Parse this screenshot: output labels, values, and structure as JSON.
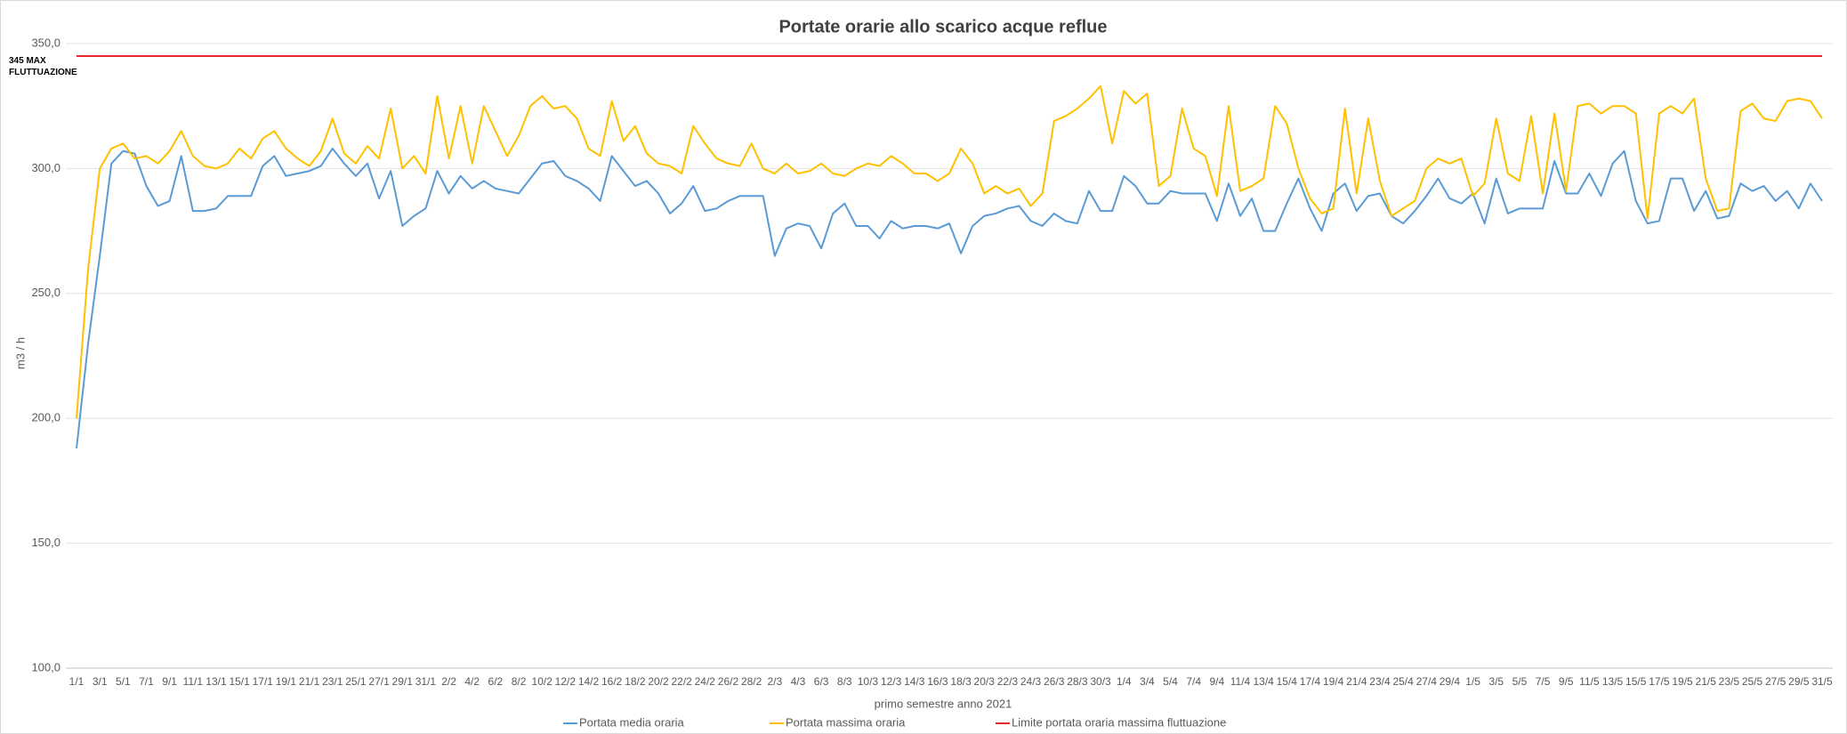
{
  "chart_data": {
    "type": "line",
    "title": "Portate orarie allo scarico acque reflue",
    "x_label": "primo semestre anno 2021",
    "y_label": "m3 / h",
    "annotation": "345 MAX FLUTTUAZIONE",
    "categories": [
      "1/1",
      null,
      "3/1",
      null,
      "5/1",
      null,
      "7/1",
      null,
      "9/1",
      null,
      "11/1",
      null,
      "13/1",
      null,
      "15/1",
      null,
      "17/1",
      null,
      "19/1",
      null,
      "21/1",
      null,
      "23/1",
      null,
      "25/1",
      null,
      "27/1",
      null,
      "29/1",
      null,
      "31/1",
      null,
      "2/2",
      null,
      "4/2",
      null,
      "6/2",
      null,
      "8/2",
      null,
      "10/2",
      null,
      "12/2",
      null,
      "14/2",
      null,
      "16/2",
      null,
      "18/2",
      null,
      "20/2",
      null,
      "22/2",
      null,
      "24/2",
      null,
      "26/2",
      null,
      "28/2",
      null,
      "2/3",
      null,
      "4/3",
      null,
      "6/3",
      null,
      "8/3",
      null,
      "10/3",
      null,
      "12/3",
      null,
      "14/3",
      null,
      "16/3",
      null,
      "18/3",
      null,
      "20/3",
      null,
      "22/3",
      null,
      "24/3",
      null,
      "26/3",
      null,
      "28/3",
      null,
      "30/3",
      null,
      "1/4",
      null,
      "3/4",
      null,
      "5/4",
      null,
      "7/4",
      null,
      "9/4",
      null,
      "11/4",
      null,
      "13/4",
      null,
      "15/4",
      null,
      "17/4",
      null,
      "19/4",
      null,
      "21/4",
      null,
      "23/4",
      null,
      "25/4",
      null,
      "27/4",
      null,
      "29/4",
      null,
      "1/5",
      null,
      "3/5",
      null,
      "5/5",
      null,
      "7/5",
      null,
      "9/5",
      null,
      "11/5",
      null,
      "13/5",
      null,
      "15/5",
      null,
      "17/5",
      null,
      "19/5",
      null,
      "21/5",
      null,
      "23/5",
      null,
      "25/5",
      null,
      "27/5",
      null,
      "29/5",
      null,
      "31/5"
    ],
    "series": [
      {
        "name": "Portata media oraria",
        "color": "#5b9bd5",
        "values": [
          188,
          230,
          265,
          302,
          307,
          306,
          293,
          285,
          287,
          305,
          283,
          283,
          284,
          289,
          289,
          289,
          301,
          305,
          297,
          298,
          299,
          301,
          308,
          302,
          297,
          302,
          288,
          299,
          277,
          281,
          284,
          299,
          290,
          297,
          292,
          295,
          292,
          291,
          290,
          296,
          302,
          303,
          297,
          295,
          292,
          287,
          305,
          299,
          293,
          295,
          290,
          282,
          286,
          293,
          283,
          284,
          287,
          289,
          289,
          289,
          265,
          276,
          278,
          277,
          268,
          282,
          286,
          277,
          277,
          272,
          279,
          276,
          277,
          277,
          276,
          278,
          266,
          277,
          281,
          282,
          284,
          285,
          279,
          277,
          282,
          279,
          278,
          291,
          283,
          283,
          297,
          293,
          286,
          286,
          291,
          290,
          290,
          290,
          279,
          294,
          281,
          288,
          275,
          275,
          286,
          296,
          284,
          275,
          290,
          294,
          283,
          289,
          290,
          281,
          278,
          283,
          289,
          296,
          288,
          286,
          290,
          278,
          296,
          282,
          284,
          284,
          284,
          303,
          290,
          290,
          298,
          289,
          302,
          307,
          287,
          278,
          279,
          296,
          296,
          283,
          291,
          280,
          281,
          294,
          291,
          293,
          287,
          291,
          284,
          294,
          287
        ]
      },
      {
        "name": "Portata massima oraria",
        "color": "#ffc000",
        "values": [
          200,
          260,
          300,
          308,
          310,
          304,
          305,
          302,
          307,
          315,
          305,
          301,
          300,
          302,
          308,
          304,
          312,
          315,
          308,
          304,
          301,
          307,
          320,
          306,
          302,
          309,
          304,
          324,
          300,
          305,
          298,
          329,
          304,
          325,
          302,
          325,
          315,
          305,
          313,
          325,
          329,
          324,
          325,
          320,
          308,
          305,
          327,
          311,
          317,
          306,
          302,
          301,
          298,
          317,
          310,
          304,
          302,
          301,
          310,
          300,
          298,
          302,
          298,
          299,
          302,
          298,
          297,
          300,
          302,
          301,
          305,
          302,
          298,
          298,
          295,
          298,
          308,
          302,
          290,
          293,
          290,
          292,
          285,
          290,
          319,
          321,
          324,
          328,
          333,
          310,
          331,
          326,
          330,
          293,
          297,
          324,
          308,
          305,
          289,
          325,
          291,
          293,
          296,
          325,
          318,
          300,
          288,
          282,
          284,
          324,
          290,
          320,
          295,
          281,
          284,
          287,
          300,
          304,
          302,
          304,
          289,
          294,
          320,
          298,
          295,
          321,
          290,
          322,
          291,
          325,
          326,
          322,
          325,
          325,
          322,
          280,
          322,
          325,
          322,
          328,
          296,
          283,
          284,
          323,
          326,
          320,
          319,
          327,
          328,
          327,
          320
        ]
      },
      {
        "name": "Limite portata oraria massima fluttuazione",
        "color": "#e8262b",
        "values": [
          345,
          345,
          345,
          345,
          345,
          345,
          345,
          345,
          345,
          345,
          345,
          345,
          345,
          345,
          345,
          345,
          345,
          345,
          345,
          345,
          345,
          345,
          345,
          345,
          345,
          345,
          345,
          345,
          345,
          345,
          345,
          345,
          345,
          345,
          345,
          345,
          345,
          345,
          345,
          345,
          345,
          345,
          345,
          345,
          345,
          345,
          345,
          345,
          345,
          345,
          345,
          345,
          345,
          345,
          345,
          345,
          345,
          345,
          345,
          345,
          345,
          345,
          345,
          345,
          345,
          345,
          345,
          345,
          345,
          345,
          345,
          345,
          345,
          345,
          345,
          345,
          345,
          345,
          345,
          345,
          345,
          345,
          345,
          345,
          345,
          345,
          345,
          345,
          345,
          345,
          345,
          345,
          345,
          345,
          345,
          345,
          345,
          345,
          345,
          345,
          345,
          345,
          345,
          345,
          345,
          345,
          345,
          345,
          345,
          345,
          345,
          345,
          345,
          345,
          345,
          345,
          345,
          345,
          345,
          345,
          345,
          345,
          345,
          345,
          345,
          345,
          345,
          345,
          345,
          345,
          345,
          345,
          345,
          345,
          345,
          345,
          345,
          345,
          345,
          345,
          345,
          345,
          345,
          345,
          345,
          345,
          345,
          345,
          345,
          345,
          345
        ]
      }
    ],
    "ylim": [
      100,
      350
    ],
    "yticks": [
      {
        "value": 100,
        "label": "100,0"
      },
      {
        "value": 150,
        "label": "150,0"
      },
      {
        "value": 200,
        "label": "200,0"
      },
      {
        "value": 250,
        "label": "250,0"
      },
      {
        "value": 300,
        "label": "300,0"
      },
      {
        "value": 350,
        "label": "350,0"
      }
    ],
    "grid": true,
    "legend": "bottom"
  }
}
